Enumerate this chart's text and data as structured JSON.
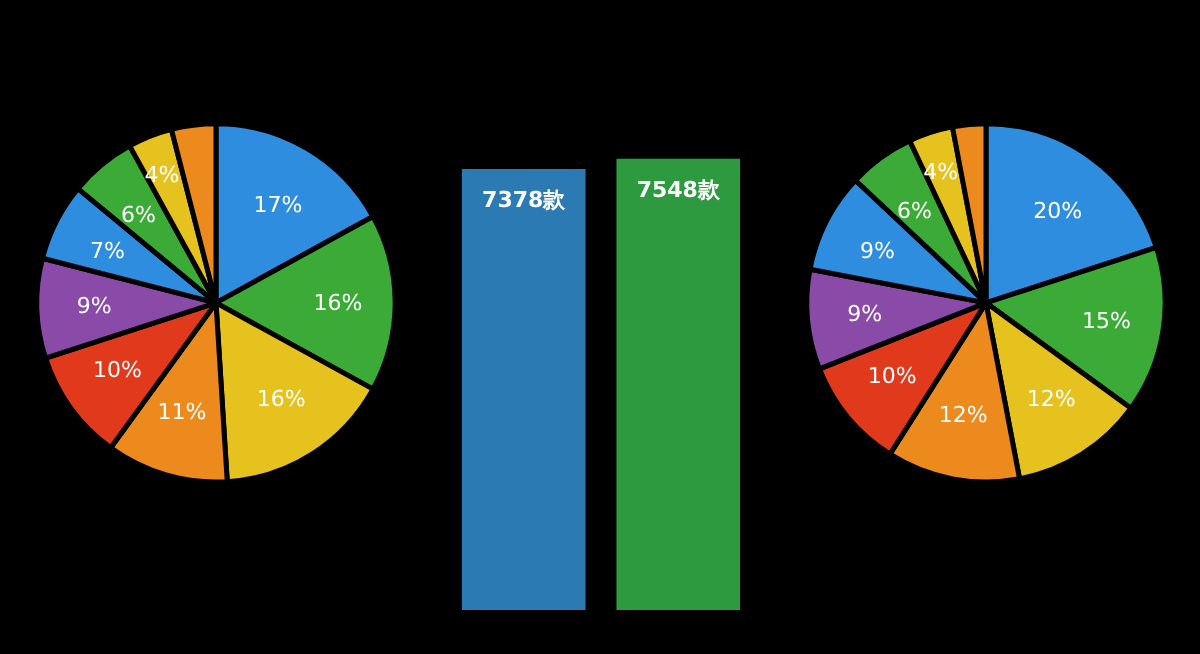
{
  "chart_data": [
    {
      "type": "pie",
      "categories": [
        null,
        null,
        null,
        null,
        null,
        null,
        null,
        null,
        null,
        null
      ],
      "values": [
        17,
        16,
        16,
        11,
        10,
        9,
        7,
        6,
        4,
        4
      ],
      "value_labels": [
        "17%",
        "16%",
        "16%",
        "11%",
        "10%",
        "9%",
        "7%",
        "6%",
        "4%",
        null
      ],
      "colors": [
        "#2f8de0",
        "#3caa36",
        "#e6c21f",
        "#ec8a1d",
        "#e0391b",
        "#8a4ba8",
        "#2f8de0",
        "#3caa36",
        "#e6c21f",
        "#ec8a1d"
      ]
    },
    {
      "type": "bar",
      "categories": [
        null,
        null
      ],
      "values": [
        7378,
        7548
      ],
      "value_labels": [
        "7378款",
        "7548款"
      ],
      "colors": [
        "#2c7ab4",
        "#2e9a3f"
      ]
    },
    {
      "type": "pie",
      "categories": [
        null,
        null,
        null,
        null,
        null,
        null,
        null,
        null,
        null,
        null
      ],
      "values": [
        20,
        15,
        12,
        12,
        10,
        9,
        9,
        6,
        4,
        3
      ],
      "value_labels": [
        "20%",
        "15%",
        "12%",
        "12%",
        "10%",
        "9%",
        "9%",
        "6%",
        "4%",
        null
      ],
      "colors": [
        "#2f8de0",
        "#3caa36",
        "#e6c21f",
        "#ec8a1d",
        "#e0391b",
        "#8a4ba8",
        "#2f8de0",
        "#3caa36",
        "#e6c21f",
        "#ec8a1d"
      ]
    }
  ]
}
